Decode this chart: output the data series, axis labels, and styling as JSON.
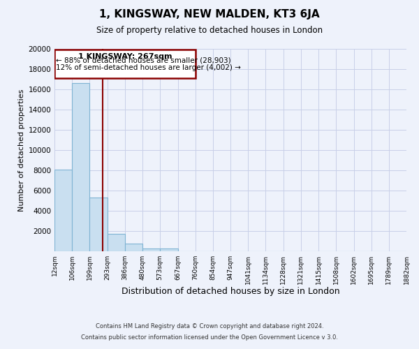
{
  "title": "1, KINGSWAY, NEW MALDEN, KT3 6JA",
  "subtitle": "Size of property relative to detached houses in London",
  "xlabel": "Distribution of detached houses by size in London",
  "ylabel": "Number of detached properties",
  "bar_values": [
    8100,
    16600,
    5300,
    1750,
    750,
    250,
    250,
    0,
    0,
    0,
    0,
    0,
    0,
    0,
    0,
    0,
    0,
    0,
    0,
    0
  ],
  "bin_labels": [
    "12sqm",
    "106sqm",
    "199sqm",
    "293sqm",
    "386sqm",
    "480sqm",
    "573sqm",
    "667sqm",
    "760sqm",
    "854sqm",
    "947sqm",
    "1041sqm",
    "1134sqm",
    "1228sqm",
    "1321sqm",
    "1415sqm",
    "1508sqm",
    "1602sqm",
    "1695sqm",
    "1789sqm",
    "1882sqm"
  ],
  "bar_color": "#c9dff0",
  "bar_edge_color": "#7fb3d3",
  "vline_x": 267,
  "vline_color": "#8b0000",
  "annotation_title": "1 KINGSWAY: 267sqm",
  "annotation_line1": "← 88% of detached houses are smaller (28,903)",
  "annotation_line2": "12% of semi-detached houses are larger (4,002) →",
  "annotation_box_color": "#8b0000",
  "ylim": [
    0,
    20000
  ],
  "yticks": [
    0,
    2000,
    4000,
    6000,
    8000,
    10000,
    12000,
    14000,
    16000,
    18000,
    20000
  ],
  "footer1": "Contains HM Land Registry data © Crown copyright and database right 2024.",
  "footer2": "Contains public sector information licensed under the Open Government Licence v 3.0.",
  "bin_edges": [
    12,
    106,
    199,
    293,
    386,
    480,
    573,
    667,
    760,
    854,
    947,
    1041,
    1134,
    1228,
    1321,
    1415,
    1508,
    1602,
    1695,
    1789,
    1882
  ],
  "background_color": "#eef2fb",
  "grid_color": "#c8cfe8"
}
